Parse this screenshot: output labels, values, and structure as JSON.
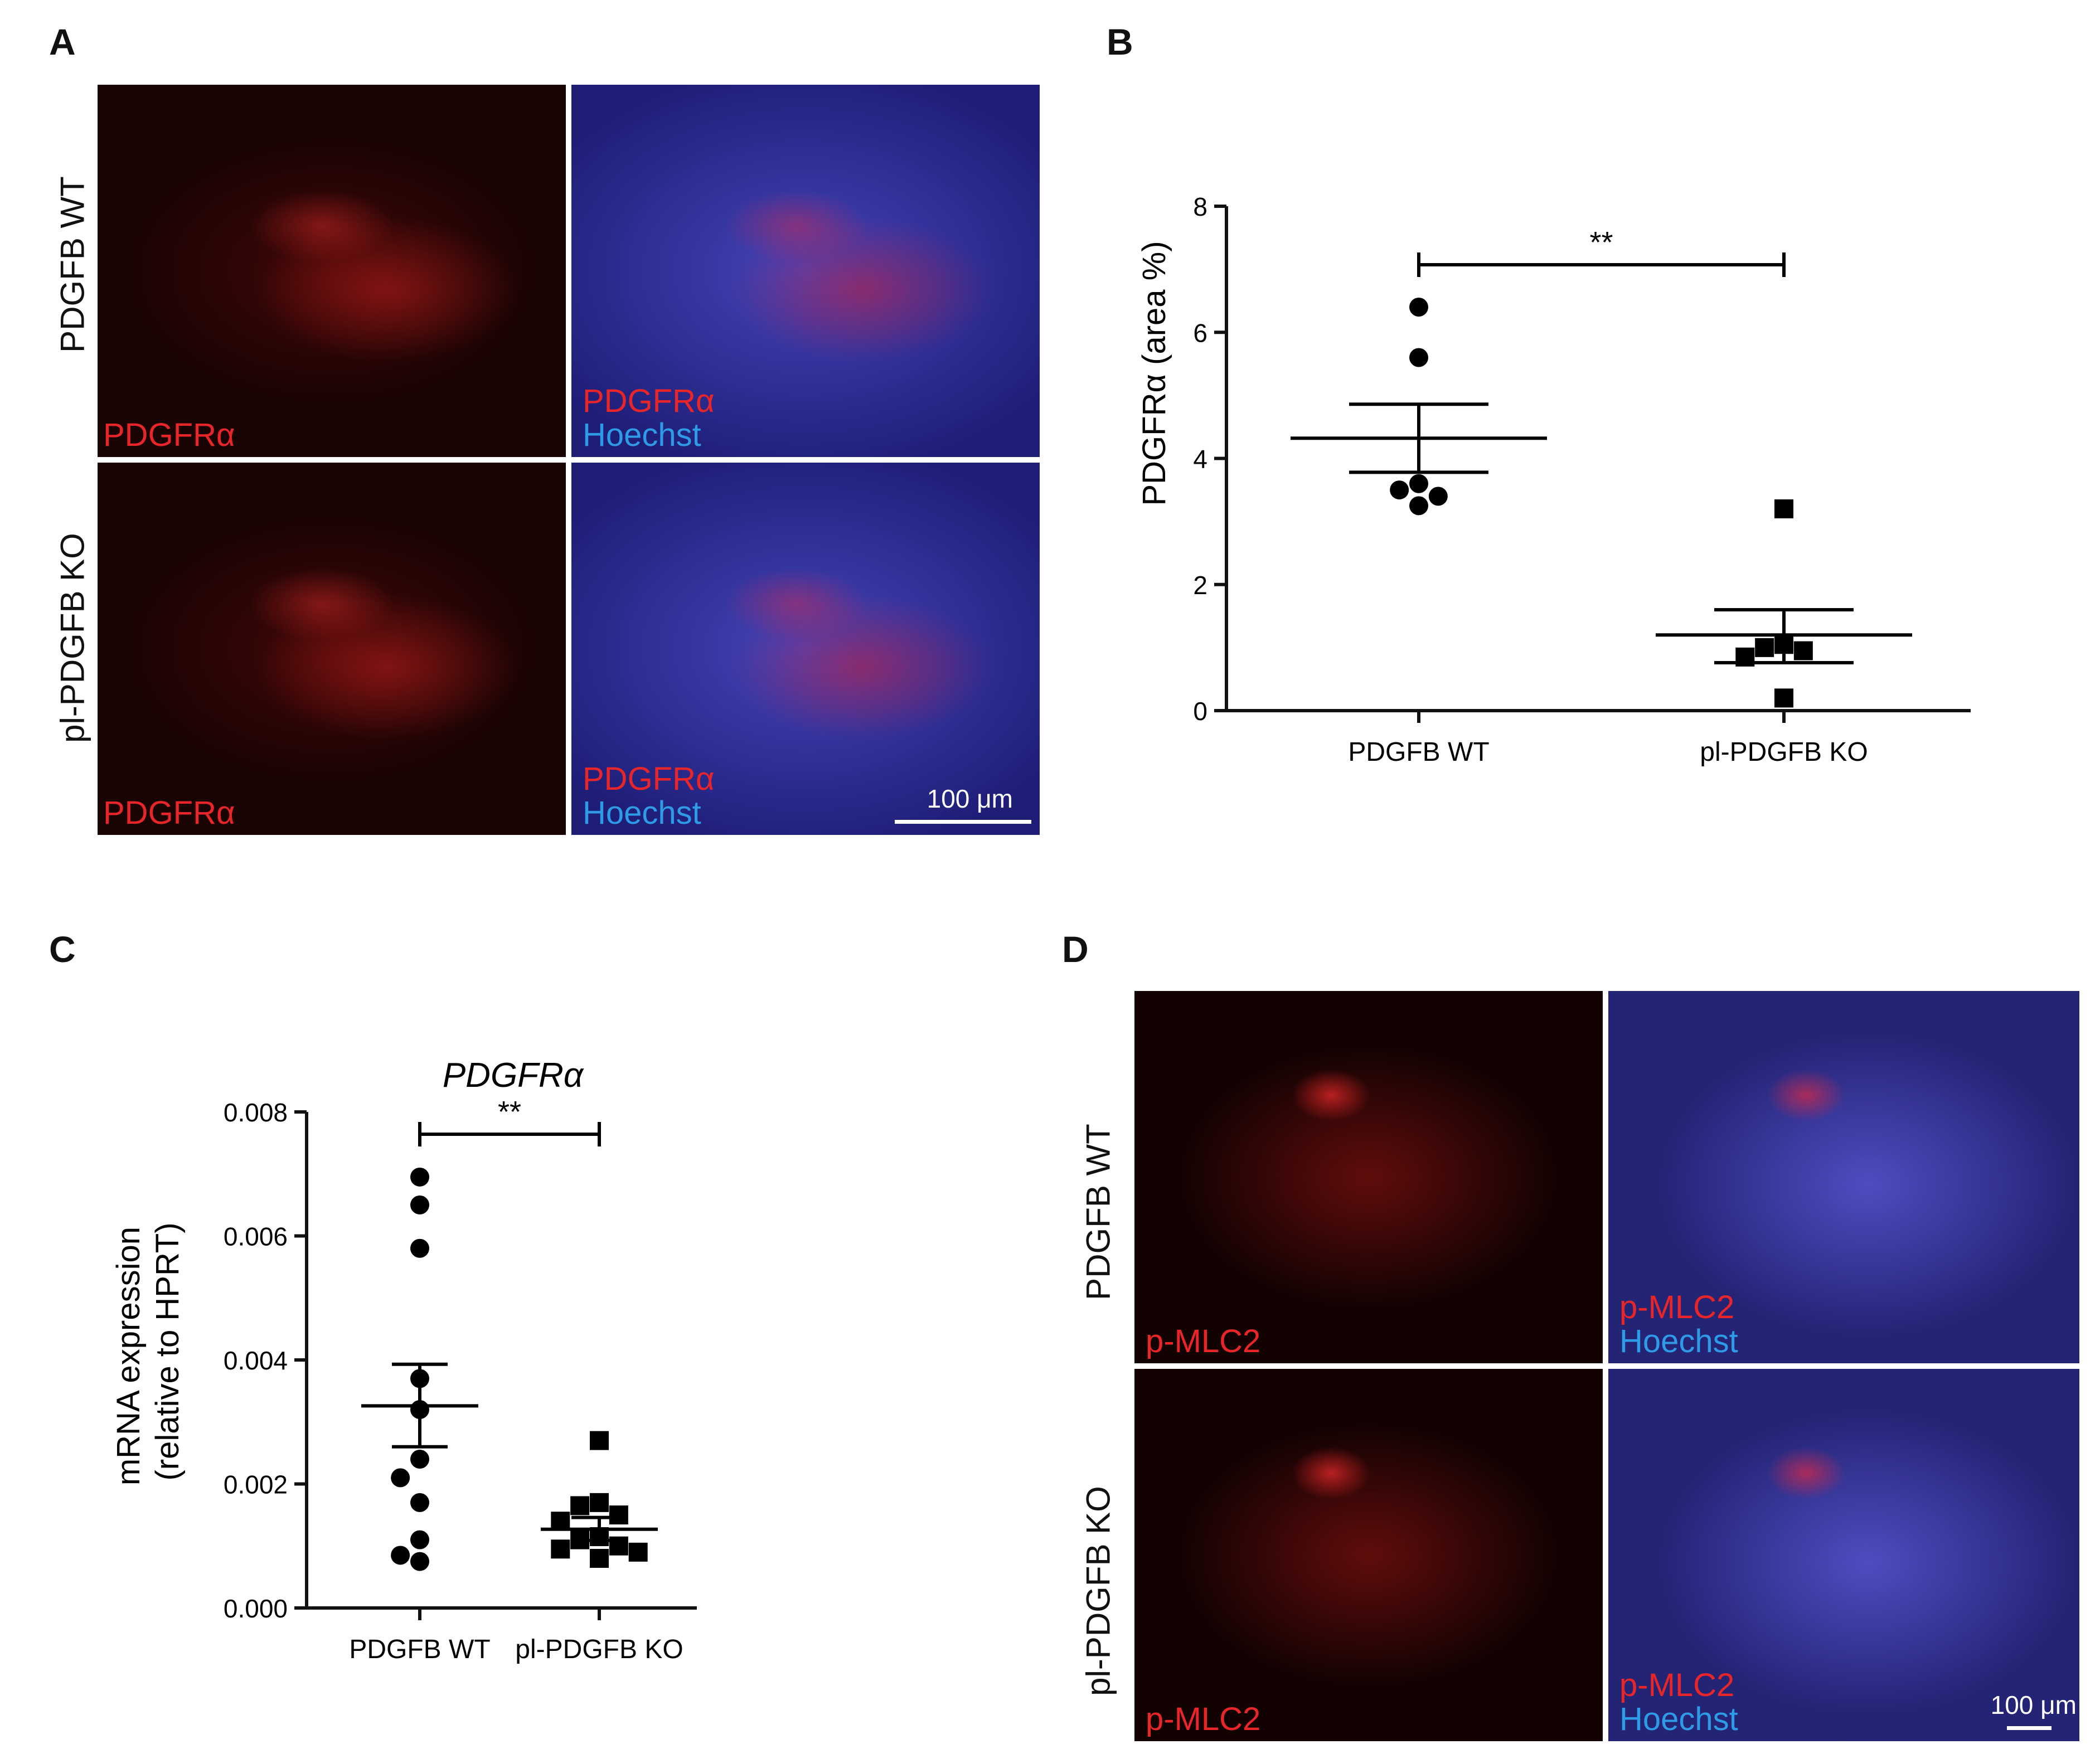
{
  "panels": {
    "A": {
      "letter": "A",
      "row_labels": [
        "PDGFB WT",
        "pl-PDGFB KO"
      ],
      "tiles": [
        {
          "lines": [
            {
              "text": "PDGFRα",
              "color": "#e8262a"
            }
          ]
        },
        {
          "lines": [
            {
              "text": "PDGFRα",
              "color": "#e8262a"
            },
            {
              "text": "Hoechst",
              "color": "#2f9be6"
            }
          ]
        },
        {
          "lines": [
            {
              "text": "PDGFRα",
              "color": "#e8262a"
            }
          ]
        },
        {
          "lines": [
            {
              "text": "PDGFRα",
              "color": "#e8262a"
            },
            {
              "text": "Hoechst",
              "color": "#2f9be6"
            }
          ]
        }
      ],
      "scalebar": "100 μm"
    },
    "B": {
      "letter": "B"
    },
    "C": {
      "letter": "C"
    },
    "D": {
      "letter": "D",
      "row_labels": [
        "PDGFB WT",
        "pl-PDGFB KO"
      ],
      "tiles": [
        {
          "lines": [
            {
              "text": "p-MLC2",
              "color": "#e8262a"
            }
          ]
        },
        {
          "lines": [
            {
              "text": "p-MLC2",
              "color": "#e8262a"
            },
            {
              "text": "Hoechst",
              "color": "#2f9be6"
            }
          ]
        },
        {
          "lines": [
            {
              "text": "p-MLC2",
              "color": "#e8262a"
            }
          ]
        },
        {
          "lines": [
            {
              "text": "p-MLC2",
              "color": "#e8262a"
            },
            {
              "text": "Hoechst",
              "color": "#2f9be6"
            }
          ]
        }
      ],
      "scalebar": "100 μm"
    }
  },
  "chart_data": [
    {
      "panel": "B",
      "type": "scatter",
      "ylabel": "PDGFRα (area %)",
      "categories": [
        "PDGFB WT",
        "pl-PDGFB KO"
      ],
      "ylim": [
        0,
        8
      ],
      "yticks": [
        "0",
        "2",
        "4",
        "6",
        "8"
      ],
      "series": [
        {
          "marker": "circle",
          "category": "PDGFB WT",
          "values": [
            6.4,
            5.6,
            3.6,
            3.5,
            3.4,
            3.25
          ],
          "mean": 4.32,
          "sem_upper": 4.86,
          "sem_lower": 3.78
        },
        {
          "marker": "square",
          "category": "pl-PDGFB KO",
          "values": [
            3.2,
            1.05,
            1.0,
            0.95,
            0.85,
            0.2
          ],
          "mean": 1.2,
          "sem_upper": 1.6,
          "sem_lower": 0.76
        }
      ],
      "significance": "**"
    },
    {
      "panel": "C",
      "type": "scatter",
      "title": "PDGFRα",
      "ylabel": "mRNA expression\n(relative to HPRT)",
      "ylabel_lines": [
        "mRNA expression",
        "(relative to HPRT)"
      ],
      "categories": [
        "PDGFB WT",
        "pl-PDGFB KO"
      ],
      "ylim": [
        0,
        0.008
      ],
      "yticks": [
        "0.000",
        "0.002",
        "0.004",
        "0.006",
        "0.008"
      ],
      "series": [
        {
          "marker": "circle",
          "category": "PDGFB WT",
          "values": [
            0.00695,
            0.0065,
            0.0058,
            0.0037,
            0.0032,
            0.0024,
            0.0021,
            0.0017,
            0.0011,
            0.00085,
            0.00075
          ],
          "mean": 0.00326,
          "sem_upper": 0.00393,
          "sem_lower": 0.0026
        },
        {
          "marker": "square",
          "category": "pl-PDGFB KO",
          "values": [
            0.0027,
            0.0017,
            0.00165,
            0.0015,
            0.0014,
            0.00115,
            0.0011,
            0.001,
            0.00095,
            0.0009,
            0.0008
          ],
          "mean": 0.00127,
          "sem_upper": 0.00146,
          "sem_lower": 0.00109
        }
      ],
      "significance": "**"
    }
  ]
}
